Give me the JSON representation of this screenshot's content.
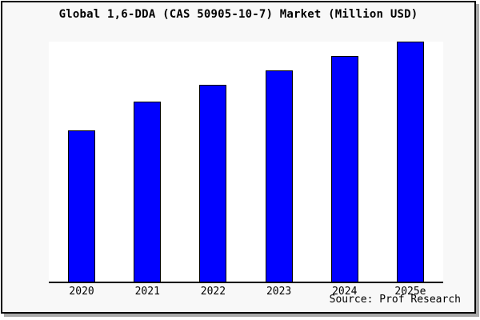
{
  "title": "Global 1,6-DDA (CAS 50905-10-7) Market (Million USD)",
  "source_credit": "Source: Prof Research",
  "colors": {
    "bar": "#0000ff",
    "bar_border": "#000000",
    "window_bg": "#f8f8f8",
    "plot_bg": "#ffffff",
    "axis": "#000000",
    "border": "#000000",
    "shadow": "#a9a9a9",
    "text": "#000000"
  },
  "chart_data": {
    "type": "bar",
    "title": "Global 1,6-DDA (CAS 50905-10-7) Market (Million USD)",
    "categories": [
      "2020",
      "2021",
      "2022",
      "2023",
      "2024",
      "2025e"
    ],
    "values": [
      63,
      75,
      82,
      88,
      94,
      100
    ],
    "values_are_estimates": true,
    "xlabel": "",
    "ylabel": "",
    "ylim": [
      0,
      100
    ],
    "y_axis_labels_visible": false,
    "grid": false,
    "legend": null,
    "bar_color": "#0000ff"
  }
}
